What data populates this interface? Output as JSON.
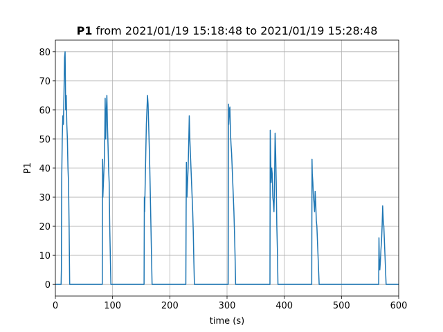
{
  "chart_data": {
    "type": "line",
    "title_bold": "P1",
    "title": "from 2021/01/19 15:18:48 to 2021/01/19 15:28:48",
    "xlabel": "time (s)",
    "ylabel": "P1",
    "xlim": [
      0,
      600
    ],
    "ylim": [
      -4,
      84
    ],
    "xticks": [
      0,
      100,
      200,
      300,
      400,
      500,
      600
    ],
    "yticks": [
      0,
      10,
      20,
      30,
      40,
      50,
      60,
      70,
      80
    ],
    "grid": true,
    "series": [
      {
        "name": "P1",
        "color": "#1f77b4",
        "x": [
          0,
          10,
          10.5,
          11,
          12,
          13,
          14,
          15,
          16,
          17,
          18,
          19,
          20,
          21,
          22,
          23,
          24,
          25,
          82,
          82.5,
          83,
          84,
          85,
          86,
          87,
          88,
          89,
          90,
          91,
          92,
          93,
          94,
          95,
          96,
          97,
          155,
          155.5,
          156,
          157,
          158,
          159,
          160,
          161,
          162,
          163,
          164,
          165,
          166,
          167,
          168,
          169,
          228,
          228.5,
          229,
          230,
          231,
          232,
          233,
          234,
          235,
          236,
          237,
          238,
          239,
          240,
          241,
          242,
          243,
          302,
          302.5,
          303,
          304,
          305,
          306,
          307,
          308,
          309,
          310,
          311,
          312,
          313,
          314,
          315,
          375,
          375.5,
          376,
          377,
          378,
          379,
          380,
          381,
          382,
          383,
          384,
          385,
          386,
          387,
          388,
          389,
          448,
          448.5,
          449,
          450,
          451,
          452,
          453,
          454,
          455,
          456,
          457,
          458,
          459,
          460,
          461,
          565,
          565.5,
          566,
          567,
          568,
          569,
          570,
          571,
          572,
          573,
          574,
          575,
          576,
          578,
          600
        ],
        "values": [
          0,
          0,
          5,
          35,
          50,
          58,
          55,
          65,
          78,
          80,
          60,
          65,
          55,
          50,
          40,
          35,
          20,
          0,
          0,
          43,
          30,
          35,
          40,
          45,
          64,
          50,
          60,
          65,
          55,
          48,
          40,
          35,
          20,
          10,
          0,
          0,
          30,
          25,
          35,
          45,
          55,
          60,
          65,
          62,
          55,
          48,
          40,
          30,
          20,
          10,
          0,
          0,
          25,
          42,
          30,
          35,
          40,
          48,
          58,
          50,
          45,
          40,
          35,
          30,
          25,
          18,
          8,
          0,
          0,
          62,
          55,
          60,
          61,
          52,
          48,
          45,
          40,
          35,
          30,
          25,
          18,
          10,
          0,
          0,
          53,
          45,
          35,
          40,
          38,
          30,
          28,
          25,
          35,
          52,
          45,
          35,
          20,
          12,
          0,
          0,
          43,
          38,
          35,
          30,
          28,
          25,
          32,
          28,
          22,
          20,
          15,
          10,
          5,
          0,
          0,
          16,
          10,
          5,
          8,
          12,
          15,
          20,
          27,
          22,
          20,
          15,
          10,
          0,
          0
        ]
      }
    ]
  }
}
